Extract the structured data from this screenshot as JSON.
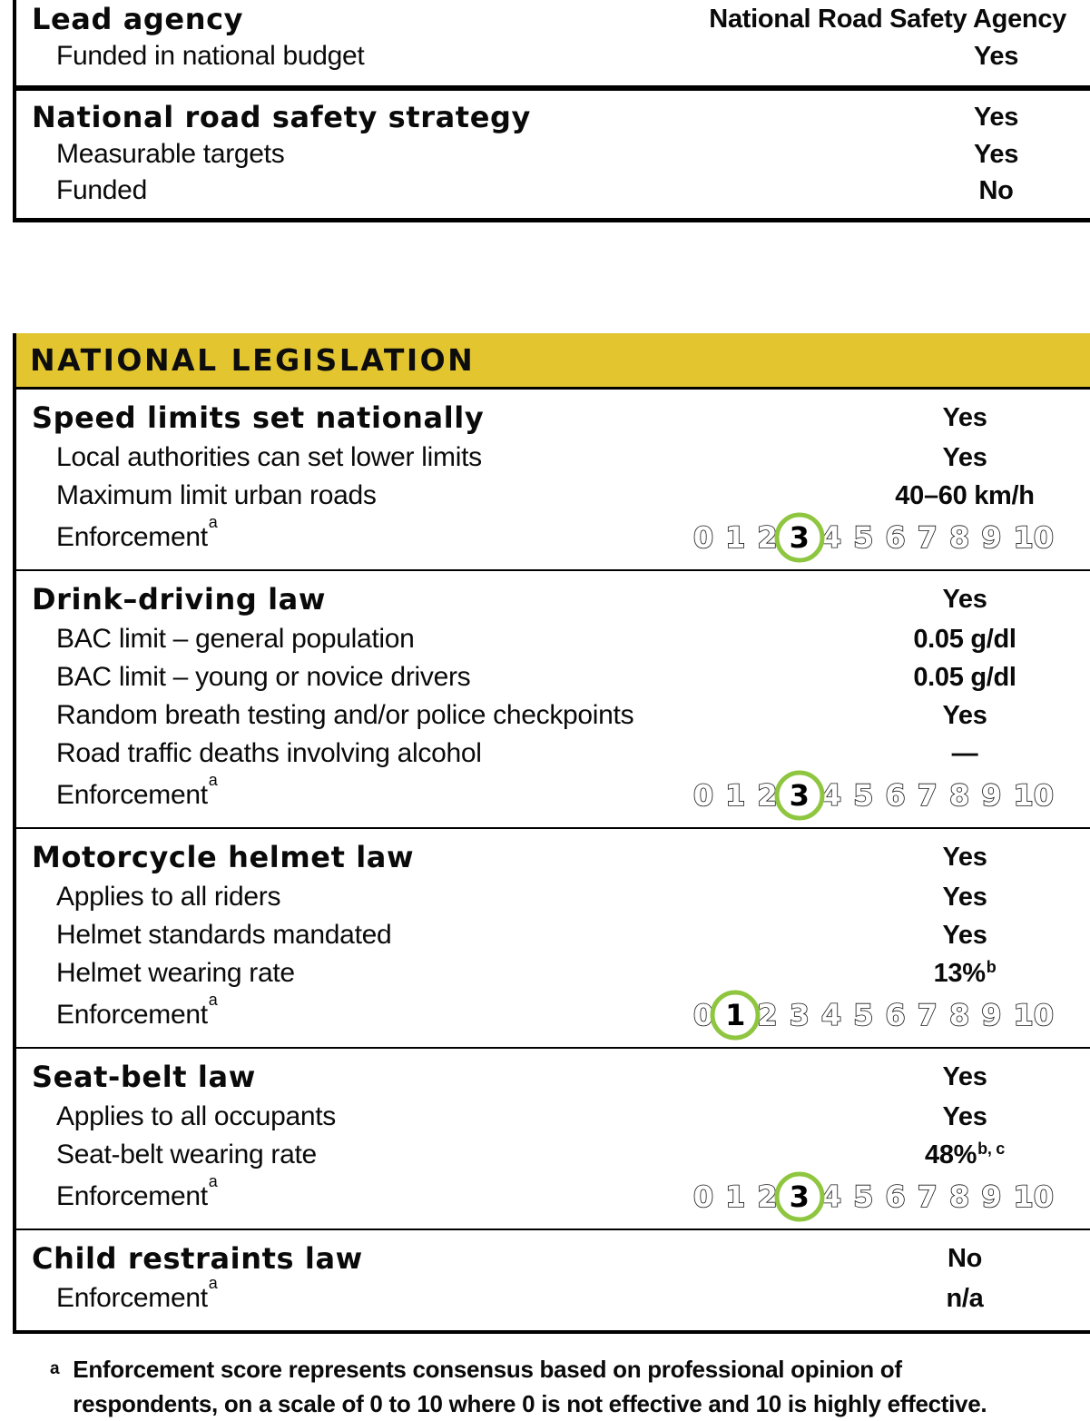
{
  "colors": {
    "header_bg": "#E2C52F",
    "accent_green": "#8FC640",
    "text": "#0A0A0A",
    "line": "#000000"
  },
  "scale": {
    "min": 0,
    "max": 10,
    "numbers": [
      "0",
      "1",
      "2",
      "3",
      "4",
      "5",
      "6",
      "7",
      "8",
      "9",
      "10"
    ]
  },
  "labels": {
    "enforcement": "Enforcement",
    "enforcement_sup": "a"
  },
  "governance": {
    "sections": [
      {
        "title": "Lead agency",
        "value": "National Road Safety Agency",
        "rows": [
          {
            "label": "Funded in national budget",
            "value": "Yes"
          }
        ]
      },
      {
        "title": "National road safety strategy",
        "value": "Yes",
        "rows": [
          {
            "label": "Measurable targets",
            "value": "Yes"
          },
          {
            "label": "Funded",
            "value": "No"
          }
        ]
      }
    ]
  },
  "legislation": {
    "header": "NATIONAL LEGISLATION",
    "sections": [
      {
        "title": "Speed limits set nationally",
        "value": "Yes",
        "rows": [
          {
            "label": "Local authorities can set lower limits",
            "value": "Yes"
          },
          {
            "label": "Maximum limit urban roads",
            "value": "40–60 km/h"
          }
        ],
        "enforcement_score": "3"
      },
      {
        "title": "Drink–driving law",
        "value": "Yes",
        "rows": [
          {
            "label": "BAC limit – general population",
            "value": "0.05 g/dl"
          },
          {
            "label": "BAC limit – young or novice drivers",
            "value": "0.05 g/dl"
          },
          {
            "label": "Random breath testing and/or police checkpoints",
            "value": "Yes"
          },
          {
            "label": "Road traffic deaths involving alcohol",
            "value": "—"
          }
        ],
        "enforcement_score": "3"
      },
      {
        "title": "Motorcycle helmet law",
        "value": "Yes",
        "rows": [
          {
            "label": "Applies to all riders",
            "value": "Yes"
          },
          {
            "label": "Helmet standards mandated",
            "value": "Yes"
          },
          {
            "label": "Helmet wearing rate",
            "value": "13%",
            "value_sup": "b"
          }
        ],
        "enforcement_score": "1"
      },
      {
        "title": "Seat-belt law",
        "value": "Yes",
        "rows": [
          {
            "label": "Applies to all occupants",
            "value": "Yes"
          },
          {
            "label": "Seat-belt wearing rate",
            "value": "48%",
            "value_sup": "b, c"
          }
        ],
        "enforcement_score": "3"
      },
      {
        "title": "Child restraints law",
        "value": "No",
        "rows": [],
        "enforcement_value": "n/a"
      }
    ]
  },
  "footnote": {
    "marker": "a",
    "text": "Enforcement score represents consensus based on professional opinion of respondents, on a scale of 0 to 10 where 0 is not effective and 10 is highly effective."
  }
}
